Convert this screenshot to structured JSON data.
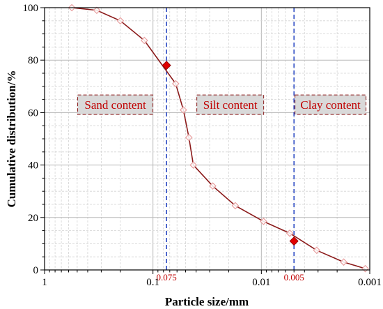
{
  "chart_data": {
    "type": "line",
    "title": "",
    "xlabel": "Particle size/mm",
    "ylabel": "Cumulative distribution/%",
    "x_scale": "log",
    "x_reversed": true,
    "xlim": [
      1,
      0.001
    ],
    "ylim": [
      0,
      100
    ],
    "x_ticks": [
      {
        "value": 1,
        "label": "1"
      },
      {
        "value": 0.1,
        "label": "0.1"
      },
      {
        "value": 0.01,
        "label": "0.01"
      },
      {
        "value": 0.001,
        "label": "0.001"
      }
    ],
    "y_ticks": [
      0,
      20,
      40,
      60,
      80,
      100
    ],
    "grid": true,
    "series": [
      {
        "color": "#8b1a1a",
        "marker": "diamond-open",
        "marker_color": "#e8a0a0",
        "x": [
          0.56,
          0.33,
          0.2,
          0.12,
          0.0617,
          0.0524,
          0.0466,
          0.0424,
          0.0281,
          0.0174,
          0.00955,
          0.00547,
          0.00309,
          0.00174,
          0.0011
        ],
        "y": [
          100,
          99,
          95,
          87.5,
          71,
          61,
          50.5,
          40,
          32,
          24.5,
          18.5,
          14,
          7.5,
          3,
          0.5
        ]
      }
    ],
    "highlight_points": [
      {
        "x": 0.075,
        "y": 78,
        "color": "#e00000"
      },
      {
        "x": 0.005,
        "y": 11,
        "color": "#e00000"
      }
    ],
    "reference_lines": [
      {
        "x": 0.075,
        "label": "0.075",
        "color": "#1f3fbf"
      },
      {
        "x": 0.005,
        "label": "0.005",
        "color": "#1f3fbf"
      }
    ],
    "regions": [
      {
        "label": "Sand content",
        "y": 63
      },
      {
        "label": "Silt content",
        "y": 63
      },
      {
        "label": "Clay content",
        "y": 63
      }
    ]
  }
}
